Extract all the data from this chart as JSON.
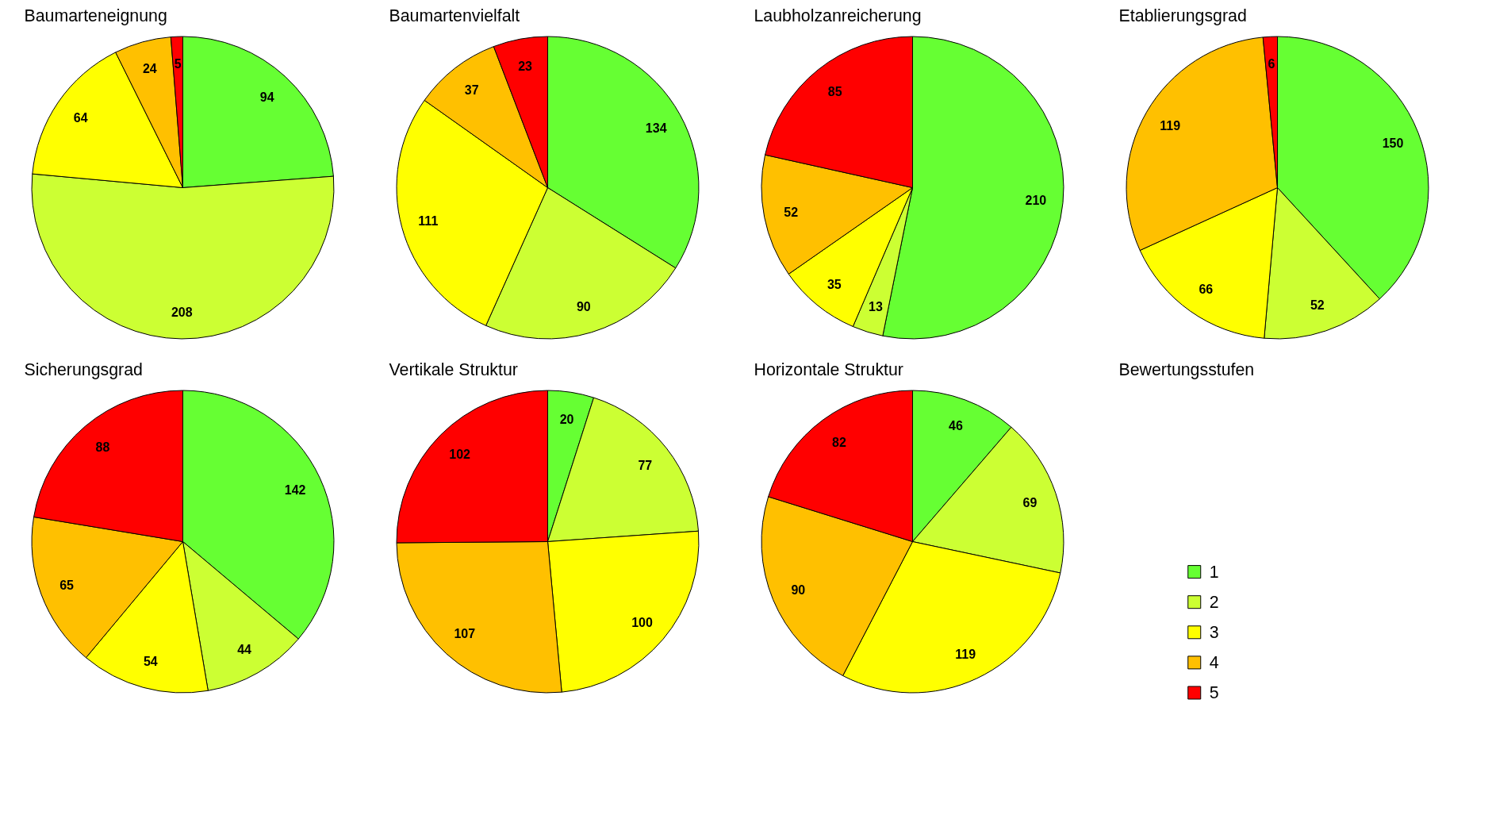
{
  "chart_data": [
    {
      "type": "pie",
      "title": "Baumarteneignung",
      "categories": [
        "1",
        "2",
        "3",
        "4",
        "5"
      ],
      "values": [
        94,
        208,
        64,
        24,
        5
      ],
      "colors": [
        "#66ff33",
        "#ccff33",
        "#ffff00",
        "#ffc000",
        "#ff0000"
      ],
      "data_labels": true,
      "legend": "right",
      "legend_title": "Bewertungsstufen"
    },
    {
      "type": "pie",
      "title": "Baumartenvielfalt",
      "values": [
        134,
        90,
        111,
        37,
        23
      ],
      "colors": [
        "#66ff33",
        "#ccff33",
        "#ffff00",
        "#ffc000",
        "#ff0000"
      ],
      "data_labels": true
    },
    {
      "type": "pie",
      "title": "Laubholzanreicherung",
      "values": [
        210,
        13,
        35,
        52,
        85
      ],
      "colors": [
        "#66ff33",
        "#ccff33",
        "#ffff00",
        "#ffc000",
        "#ff0000"
      ],
      "data_labels": true
    },
    {
      "type": "pie",
      "title": "Etablierungsgrad",
      "values": [
        150,
        52,
        66,
        119,
        6
      ],
      "colors": [
        "#66ff33",
        "#ccff33",
        "#ffff00",
        "#ffc000",
        "#ff0000"
      ],
      "data_labels": true
    },
    {
      "type": "pie",
      "title": "Sicherungsgrad",
      "values": [
        142,
        44,
        54,
        65,
        88
      ],
      "colors": [
        "#66ff33",
        "#ccff33",
        "#ffff00",
        "#ffc000",
        "#ff0000"
      ],
      "data_labels": true
    },
    {
      "type": "pie",
      "title": "Vertikale Struktur",
      "values": [
        20,
        77,
        100,
        107,
        102
      ],
      "colors": [
        "#66ff33",
        "#ccff33",
        "#ffff00",
        "#ffc000",
        "#ff0000"
      ],
      "data_labels": true
    },
    {
      "type": "pie",
      "title": "Horizontale Struktur",
      "values": [
        46,
        69,
        119,
        90,
        82
      ],
      "colors": [
        "#66ff33",
        "#ccff33",
        "#ffff00",
        "#ffc000",
        "#ff0000"
      ],
      "data_labels": true
    }
  ]
}
